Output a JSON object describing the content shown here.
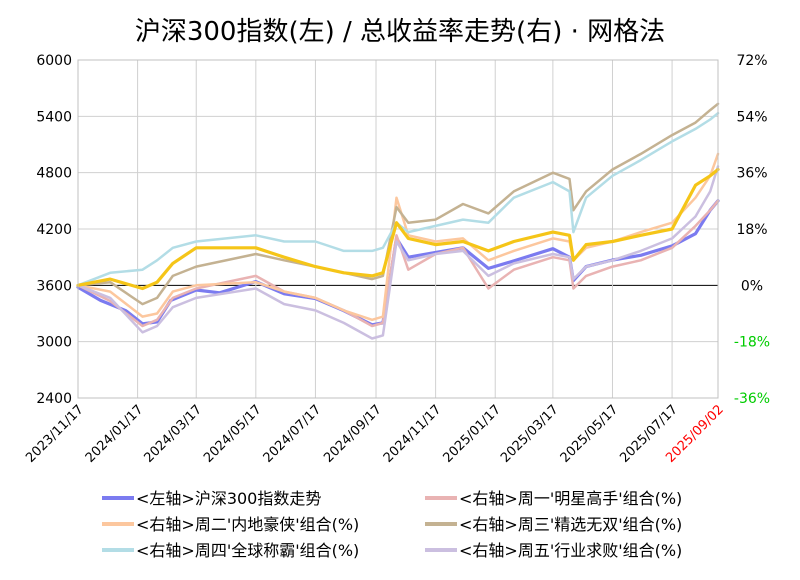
{
  "chart_data": {
    "type": "line",
    "title": "沪深300指数(左)  /  总收益率走势(右) · 网格法",
    "x_ticks": [
      "2023/11/17",
      "2024/01/17",
      "2024/03/17",
      "2024/05/17",
      "2024/07/17",
      "2024/09/17",
      "2024/11/17",
      "2025/01/17",
      "2025/03/17",
      "2025/05/17",
      "2025/07/17"
    ],
    "x_last_tick": "2025/09/02",
    "x_range": [
      "2023/11/17",
      "2025/09/02"
    ],
    "left_axis": {
      "ticks": [
        "6000",
        "5400",
        "4800",
        "4200",
        "3600",
        "3000",
        "2400"
      ],
      "min": 2400,
      "max": 6000
    },
    "right_axis": {
      "ticks": [
        "72%",
        "54%",
        "36%",
        "18%",
        "0%",
        "-18%",
        "-36%"
      ],
      "min": -36,
      "max": 72
    },
    "colors": {
      "grid": "#d0d0d0",
      "zero_line": "#000000",
      "negative_tick": "#00cc00",
      "highlight_tick": "#ff0000"
    },
    "series": [
      {
        "name": "<左轴>沪深300指数走势",
        "axis": "left",
        "color": "#7b7bf0",
        "width": 3.2,
        "points": [
          [
            "2023/11/17",
            3580
          ],
          [
            "2023/12/10",
            3440
          ],
          [
            "2024/01/05",
            3330
          ],
          [
            "2024/01/22",
            3190
          ],
          [
            "2024/02/06",
            3210
          ],
          [
            "2024/02/20",
            3440
          ],
          [
            "2024/03/17",
            3550
          ],
          [
            "2024/04/10",
            3520
          ],
          [
            "2024/05/17",
            3640
          ],
          [
            "2024/06/15",
            3510
          ],
          [
            "2024/07/17",
            3460
          ],
          [
            "2024/08/15",
            3330
          ],
          [
            "2024/09/13",
            3180
          ],
          [
            "2024/09/24",
            3200
          ],
          [
            "2024/10/08",
            4100
          ],
          [
            "2024/10/20",
            3900
          ],
          [
            "2024/11/17",
            3950
          ],
          [
            "2024/12/15",
            4000
          ],
          [
            "2025/01/10",
            3780
          ],
          [
            "2025/02/05",
            3860
          ],
          [
            "2025/03/17",
            3990
          ],
          [
            "2025/04/03",
            3900
          ],
          [
            "2025/04/07",
            3650
          ],
          [
            "2025/04/20",
            3800
          ],
          [
            "2025/05/17",
            3870
          ],
          [
            "2025/06/15",
            3920
          ],
          [
            "2025/07/17",
            4020
          ],
          [
            "2025/08/10",
            4150
          ],
          [
            "2025/08/25",
            4400
          ],
          [
            "2025/09/02",
            4500
          ]
        ]
      },
      {
        "name": "<右轴>周一'明星高手'组合(%)",
        "axis": "right",
        "color": "#e9b3b3",
        "width": 2.5,
        "points": [
          [
            "2023/11/17",
            0
          ],
          [
            "2023/12/20",
            -5
          ],
          [
            "2024/01/22",
            -13
          ],
          [
            "2024/02/06",
            -11
          ],
          [
            "2024/02/22",
            -4
          ],
          [
            "2024/03/17",
            -1
          ],
          [
            "2024/05/17",
            3
          ],
          [
            "2024/06/15",
            -2
          ],
          [
            "2024/07/17",
            -4
          ],
          [
            "2024/08/15",
            -8
          ],
          [
            "2024/09/13",
            -13
          ],
          [
            "2024/09/24",
            -12
          ],
          [
            "2024/10/08",
            16
          ],
          [
            "2024/10/20",
            5
          ],
          [
            "2024/11/17",
            10
          ],
          [
            "2024/12/15",
            12
          ],
          [
            "2025/01/10",
            -1
          ],
          [
            "2025/02/05",
            5
          ],
          [
            "2025/03/17",
            9
          ],
          [
            "2025/04/03",
            8
          ],
          [
            "2025/04/07",
            -1
          ],
          [
            "2025/04/20",
            3
          ],
          [
            "2025/05/17",
            6
          ],
          [
            "2025/06/15",
            8
          ],
          [
            "2025/07/17",
            12
          ],
          [
            "2025/08/10",
            19
          ],
          [
            "2025/08/25",
            24
          ],
          [
            "2025/09/02",
            27
          ]
        ]
      },
      {
        "name": "<右轴>周二'内地豪侠'组合(%)",
        "axis": "right",
        "color": "#fcc79e",
        "width": 2.5,
        "points": [
          [
            "2023/11/17",
            0
          ],
          [
            "2023/12/20",
            -2
          ],
          [
            "2024/01/22",
            -10
          ],
          [
            "2024/02/06",
            -9
          ],
          [
            "2024/02/22",
            -2
          ],
          [
            "2024/03/17",
            0
          ],
          [
            "2024/05/17",
            1
          ],
          [
            "2024/06/15",
            -2
          ],
          [
            "2024/07/17",
            -4
          ],
          [
            "2024/08/15",
            -8
          ],
          [
            "2024/09/13",
            -11
          ],
          [
            "2024/09/24",
            -10
          ],
          [
            "2024/10/08",
            28
          ],
          [
            "2024/10/20",
            16
          ],
          [
            "2024/11/17",
            14
          ],
          [
            "2024/12/15",
            15
          ],
          [
            "2025/01/10",
            8
          ],
          [
            "2025/02/05",
            11
          ],
          [
            "2025/03/17",
            15
          ],
          [
            "2025/04/03",
            14
          ],
          [
            "2025/04/07",
            8
          ],
          [
            "2025/04/20",
            12
          ],
          [
            "2025/05/17",
            14
          ],
          [
            "2025/06/15",
            17
          ],
          [
            "2025/07/17",
            20
          ],
          [
            "2025/08/10",
            28
          ],
          [
            "2025/08/25",
            35
          ],
          [
            "2025/09/02",
            42
          ]
        ]
      },
      {
        "name": "<右轴>周三'精选无双'组合(%)",
        "axis": "right",
        "color": "#c4b292",
        "width": 2.5,
        "points": [
          [
            "2023/11/17",
            0
          ],
          [
            "2023/12/20",
            1
          ],
          [
            "2024/01/22",
            -6
          ],
          [
            "2024/02/06",
            -4
          ],
          [
            "2024/02/22",
            3
          ],
          [
            "2024/03/17",
            6
          ],
          [
            "2024/05/17",
            10
          ],
          [
            "2024/06/15",
            8
          ],
          [
            "2024/07/17",
            6
          ],
          [
            "2024/08/15",
            4
          ],
          [
            "2024/09/13",
            2
          ],
          [
            "2024/09/24",
            3
          ],
          [
            "2024/10/08",
            25
          ],
          [
            "2024/10/20",
            20
          ],
          [
            "2024/11/17",
            21
          ],
          [
            "2024/12/15",
            26
          ],
          [
            "2025/01/10",
            23
          ],
          [
            "2025/02/05",
            30
          ],
          [
            "2025/03/17",
            36
          ],
          [
            "2025/04/03",
            34
          ],
          [
            "2025/04/07",
            24
          ],
          [
            "2025/04/20",
            30
          ],
          [
            "2025/05/17",
            37
          ],
          [
            "2025/06/15",
            42
          ],
          [
            "2025/07/17",
            48
          ],
          [
            "2025/08/10",
            52
          ],
          [
            "2025/08/25",
            56
          ],
          [
            "2025/09/02",
            58
          ]
        ]
      },
      {
        "name": "<右轴>周四'全球称霸'组合(%)",
        "axis": "right",
        "color": "#b3dde6",
        "width": 2.5,
        "points": [
          [
            "2023/11/17",
            0
          ],
          [
            "2023/12/20",
            4
          ],
          [
            "2024/01/22",
            5
          ],
          [
            "2024/02/06",
            8
          ],
          [
            "2024/02/22",
            12
          ],
          [
            "2024/03/17",
            14
          ],
          [
            "2024/05/17",
            16
          ],
          [
            "2024/06/15",
            14
          ],
          [
            "2024/07/17",
            14
          ],
          [
            "2024/08/15",
            11
          ],
          [
            "2024/09/13",
            11
          ],
          [
            "2024/09/24",
            12
          ],
          [
            "2024/10/08",
            20
          ],
          [
            "2024/10/20",
            17
          ],
          [
            "2024/11/17",
            19
          ],
          [
            "2024/12/15",
            21
          ],
          [
            "2025/01/10",
            20
          ],
          [
            "2025/02/05",
            28
          ],
          [
            "2025/03/17",
            33
          ],
          [
            "2025/04/03",
            30
          ],
          [
            "2025/04/07",
            17
          ],
          [
            "2025/04/20",
            28
          ],
          [
            "2025/05/17",
            35
          ],
          [
            "2025/06/15",
            40
          ],
          [
            "2025/07/17",
            46
          ],
          [
            "2025/08/10",
            50
          ],
          [
            "2025/08/25",
            53
          ],
          [
            "2025/09/02",
            55
          ]
        ]
      },
      {
        "name": "<右轴>周五'行业求败'组合(%)",
        "axis": "right",
        "color": "#cbbfe0",
        "width": 2.5,
        "points": [
          [
            "2023/11/17",
            0
          ],
          [
            "2023/12/20",
            -4
          ],
          [
            "2024/01/22",
            -15
          ],
          [
            "2024/02/06",
            -13
          ],
          [
            "2024/02/22",
            -7
          ],
          [
            "2024/03/17",
            -4
          ],
          [
            "2024/05/17",
            -1
          ],
          [
            "2024/06/15",
            -6
          ],
          [
            "2024/07/17",
            -8
          ],
          [
            "2024/08/15",
            -12
          ],
          [
            "2024/09/13",
            -17
          ],
          [
            "2024/09/24",
            -16
          ],
          [
            "2024/10/08",
            14
          ],
          [
            "2024/10/20",
            8
          ],
          [
            "2024/11/17",
            10
          ],
          [
            "2024/12/15",
            11
          ],
          [
            "2025/01/10",
            3
          ],
          [
            "2025/02/05",
            7
          ],
          [
            "2025/03/17",
            10
          ],
          [
            "2025/04/03",
            9
          ],
          [
            "2025/04/07",
            2
          ],
          [
            "2025/04/20",
            6
          ],
          [
            "2025/05/17",
            8
          ],
          [
            "2025/06/15",
            11
          ],
          [
            "2025/07/17",
            15
          ],
          [
            "2025/08/10",
            22
          ],
          [
            "2025/08/25",
            30
          ],
          [
            "2025/09/02",
            38
          ]
        ]
      },
      {
        "name": "gold-line",
        "axis": "right",
        "color": "#f5c518",
        "width": 3.2,
        "points": [
          [
            "2023/11/17",
            0
          ],
          [
            "2023/12/20",
            2
          ],
          [
            "2024/01/22",
            -1
          ],
          [
            "2024/02/06",
            1
          ],
          [
            "2024/02/22",
            7
          ],
          [
            "2024/03/17",
            12
          ],
          [
            "2024/05/17",
            12
          ],
          [
            "2024/06/15",
            9
          ],
          [
            "2024/07/17",
            6
          ],
          [
            "2024/08/15",
            4
          ],
          [
            "2024/09/13",
            3
          ],
          [
            "2024/09/24",
            4
          ],
          [
            "2024/10/08",
            20
          ],
          [
            "2024/10/20",
            15
          ],
          [
            "2024/11/17",
            13
          ],
          [
            "2024/12/15",
            14
          ],
          [
            "2025/01/10",
            11
          ],
          [
            "2025/02/05",
            14
          ],
          [
            "2025/03/17",
            17
          ],
          [
            "2025/04/03",
            16
          ],
          [
            "2025/04/07",
            8
          ],
          [
            "2025/04/20",
            13
          ],
          [
            "2025/05/17",
            14
          ],
          [
            "2025/06/15",
            16
          ],
          [
            "2025/07/17",
            18
          ],
          [
            "2025/08/10",
            32
          ],
          [
            "2025/08/25",
            35
          ],
          [
            "2025/09/02",
            37
          ]
        ]
      }
    ],
    "legend": [
      {
        "label": "<左轴>沪深300指数走势",
        "color": "#7b7bf0"
      },
      {
        "label": "<右轴>周一'明星高手'组合(%)",
        "color": "#e9b3b3"
      },
      {
        "label": "<右轴>周二'内地豪侠'组合(%)",
        "color": "#fcc79e"
      },
      {
        "label": "<右轴>周三'精选无双'组合(%)",
        "color": "#c4b292"
      },
      {
        "label": "<右轴>周四'全球称霸'组合(%)",
        "color": "#b3dde6"
      },
      {
        "label": "<右轴>周五'行业求败'组合(%)",
        "color": "#cbbfe0"
      }
    ]
  }
}
